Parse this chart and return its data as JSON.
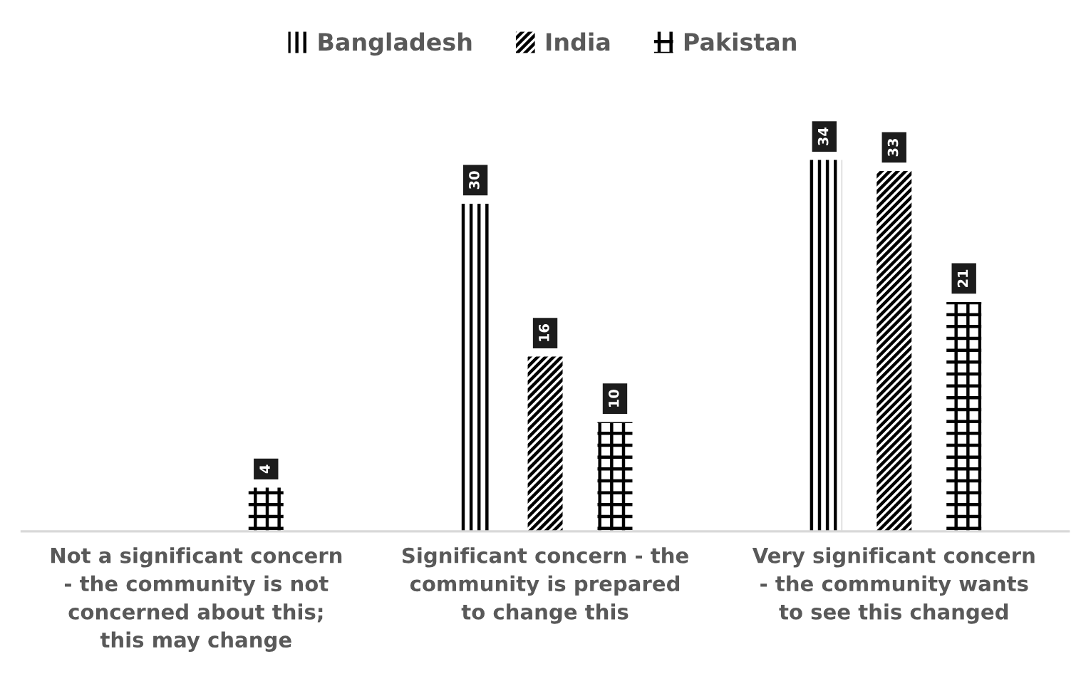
{
  "chart_data": {
    "type": "bar",
    "categories": [
      "Not a significant concern - the community is not concerned about this; this may change",
      "Significant concern - the community is prepared to change this",
      "Very significant concern - the community wants to see this changed"
    ],
    "series": [
      {
        "name": "Bangladesh",
        "color": "#000000",
        "values": [
          null,
          30,
          34
        ]
      },
      {
        "name": "India",
        "color": "#000000",
        "values": [
          null,
          16,
          33
        ]
      },
      {
        "name": "Pakistan",
        "color": "#000000",
        "values": [
          4,
          10,
          21
        ]
      }
    ],
    "data_labels": true,
    "legend": "top",
    "tick_labels": "x"
  }
}
